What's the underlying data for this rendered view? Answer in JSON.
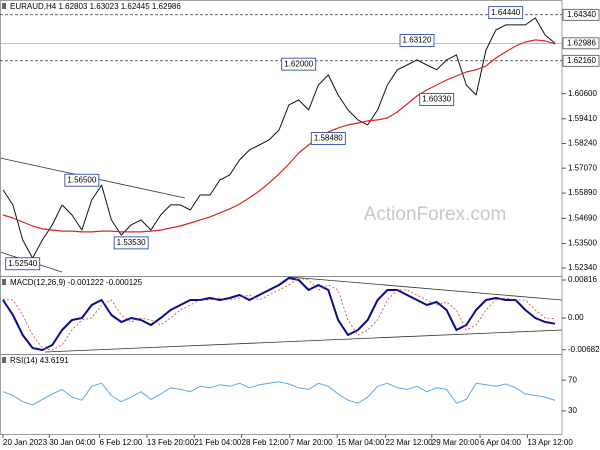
{
  "chart_data": [
    {
      "type": "line",
      "title": "EURAUD,H4  1.62803 1.63023 1.62445 1.62986",
      "watermark": "ActionForex.com",
      "xlim": [
        0,
        56
      ],
      "ylim": [
        1.5196,
        1.6504
      ],
      "yticks": [
        {
          "value": 1.5234,
          "label": "1.52340"
        },
        {
          "value": 1.535,
          "label": "1.53500"
        },
        {
          "value": 1.5469,
          "label": "1.54690"
        },
        {
          "value": 1.5589,
          "label": "1.55890"
        },
        {
          "value": 1.5707,
          "label": "1.57070"
        },
        {
          "value": 1.5824,
          "label": "1.58240"
        },
        {
          "value": 1.5941,
          "label": "1.59410"
        },
        {
          "value": 1.606,
          "label": "1.60600"
        }
      ],
      "xticks": [
        {
          "value": 0,
          "label": "20 Jan 2023"
        },
        {
          "value": 4.7,
          "label": "30 Jan 04:00"
        },
        {
          "value": 9.8,
          "label": "6 Feb 12:00"
        },
        {
          "value": 14.6,
          "label": "13 Feb 20:00"
        },
        {
          "value": 19.4,
          "label": "21 Feb 04:00"
        },
        {
          "value": 24.2,
          "label": "28 Feb 12:00"
        },
        {
          "value": 29.1,
          "label": "7 Mar 20:00"
        },
        {
          "value": 33.9,
          "label": "15 Mar 04:00"
        },
        {
          "value": 38.8,
          "label": "22 Mar 12:00"
        },
        {
          "value": 43.5,
          "label": "29 Mar 20:00"
        },
        {
          "value": 48.4,
          "label": "6 Apr 04:00"
        },
        {
          "value": 53.2,
          "label": "13 Apr 12:00"
        }
      ],
      "price_levels": [
        {
          "value": 1.6434,
          "label": "1.64340",
          "style": "dashed"
        },
        {
          "value": 1.62986,
          "label": "1.62986",
          "style": "solid"
        },
        {
          "value": 1.6216,
          "label": "1.62160",
          "style": "dashed"
        }
      ],
      "annotations": [
        {
          "x": 51,
          "value": 1.6444,
          "label": "1.64440"
        },
        {
          "x": 42,
          "value": 1.6312,
          "label": "1.63120"
        },
        {
          "x": 30,
          "value": 1.62,
          "label": "1.62000"
        },
        {
          "x": 44,
          "value": 1.6033,
          "label": "1.60330"
        },
        {
          "x": 33,
          "value": 1.5848,
          "label": "1.58480"
        },
        {
          "x": 8,
          "value": 1.565,
          "label": "1.56500"
        },
        {
          "x": 13,
          "value": 1.5353,
          "label": "1.53530"
        },
        {
          "x": 2,
          "value": 1.5254,
          "label": "1.52540"
        }
      ],
      "series": [
        {
          "color": "#111111",
          "width": 1,
          "values": [
            1.5604,
            1.5533,
            1.5367,
            1.5281,
            1.5367,
            1.5438,
            1.5533,
            1.5485,
            1.5414,
            1.5556,
            1.5627,
            1.5462,
            1.539,
            1.5438,
            1.5462,
            1.5414,
            1.5485,
            1.5533,
            1.5533,
            1.5509,
            1.558,
            1.558,
            1.5651,
            1.5675,
            1.5746,
            1.5793,
            1.5817,
            1.5841,
            1.5888,
            1.6007,
            1.603,
            1.5983,
            1.6101,
            1.6149,
            1.6054,
            1.5983,
            1.5936,
            1.5912,
            1.5983,
            1.6101,
            1.6173,
            1.6196,
            1.622,
            1.6196,
            1.6173,
            1.622,
            1.6244,
            1.6101,
            1.6054,
            1.6267,
            1.6362,
            1.6386,
            1.6386,
            1.6386,
            1.6419,
            1.6338,
            1.6299
          ]
        },
        {
          "color": "#e02020",
          "width": 1.2,
          "values": [
            1.5485,
            1.5471,
            1.5452,
            1.5433,
            1.5419,
            1.5414,
            1.5409,
            1.5409,
            1.5405,
            1.5405,
            1.5409,
            1.5409,
            1.5405,
            1.5405,
            1.5405,
            1.5409,
            1.5414,
            1.5424,
            1.5433,
            1.5447,
            1.5462,
            1.5476,
            1.5495,
            1.5514,
            1.5537,
            1.5566,
            1.5599,
            1.5637,
            1.568,
            1.5727,
            1.5779,
            1.5817,
            1.585,
            1.5879,
            1.5898,
            1.5912,
            1.5921,
            1.5931,
            1.5936,
            1.5945,
            1.5973,
            1.6011,
            1.6049,
            1.6078,
            1.6101,
            1.6125,
            1.6144,
            1.6163,
            1.6173,
            1.6191,
            1.6229,
            1.6258,
            1.6286,
            1.6305,
            1.6315,
            1.631,
            1.6296
          ]
        }
      ]
    },
    {
      "type": "line",
      "title": "MACD(12,26,9) -0.001222 -0.000125",
      "xlim": [
        0,
        56
      ],
      "ylim": [
        -0.00773,
        0.00902
      ],
      "yticks": [
        0.00816,
        {
          "value": 0,
          "label": "0.00"
        },
        -0.006821
      ],
      "series": [
        {
          "color": "#0a0a8c",
          "width": 2,
          "values": [
            0.00386,
            0.00064,
            -0.00365,
            -0.00644,
            -0.00687,
            -0.0058,
            -0.00258,
            -0.00043,
            0,
            0.00279,
            0.00386,
            0.00064,
            -0.00086,
            0,
            -0.00043,
            -0.0015,
            0,
            0.00172,
            0.00279,
            0.00386,
            0.00386,
            0.00429,
            0.00386,
            0.00429,
            0.00494,
            0.00386,
            0.00494,
            0.00601,
            0.00709,
            0.00859,
            0.00816,
            0.00601,
            0.00709,
            0.00601,
            -0.00043,
            -0.00365,
            -0.00258,
            -0.00043,
            0.00386,
            0.00601,
            0.00601,
            0.00494,
            0.00386,
            0.00279,
            0.00344,
            0.00172,
            -0.00258,
            -0.0015,
            0.00172,
            0.00386,
            0.00429,
            0.00386,
            0.00386,
            0.00172,
            0,
            -0.00086,
            -0.00122
          ]
        },
        {
          "color": "#d04040",
          "width": 0.8,
          "dashed": true,
          "values": [
            0.004,
            0.00386,
            0.00064,
            -0.00365,
            -0.00644,
            -0.00687,
            -0.0058,
            -0.00258,
            -0.00043,
            0,
            0.00279,
            0.00386,
            0.00064,
            -0.00086,
            0,
            -0.00043,
            -0.0015,
            0,
            0.00172,
            0.00279,
            0.00386,
            0.00386,
            0.00429,
            0.00386,
            0.00429,
            0.00494,
            0.00386,
            0.00494,
            0.00601,
            0.00709,
            0.00859,
            0.00816,
            0.00601,
            0.00709,
            0.00601,
            -0.00043,
            -0.00365,
            -0.00258,
            -0.00043,
            0.00386,
            0.00601,
            0.00601,
            0.00494,
            0.00386,
            0.00279,
            0.00344,
            0.00172,
            -0.00258,
            -0.0015,
            0.00172,
            0.00386,
            0.00429,
            0.00386,
            0.00386,
            0.00172,
            0,
            -0.000125
          ]
        }
      ]
    },
    {
      "type": "line",
      "title": "RSI(14) 43.6191",
      "xlim": [
        0,
        56
      ],
      "ylim": [
        0,
        104
      ],
      "yticks": [
        70,
        30
      ],
      "series": [
        {
          "color": "#5aa8f0",
          "width": 1,
          "values": [
            55,
            50,
            42,
            38,
            45,
            52,
            58,
            48,
            44,
            62,
            66,
            50,
            42,
            48,
            55,
            45,
            52,
            60,
            58,
            55,
            62,
            60,
            64,
            62,
            66,
            60,
            64,
            66,
            68,
            65,
            60,
            58,
            66,
            62,
            52,
            44,
            40,
            48,
            62,
            66,
            60,
            58,
            62,
            55,
            60,
            58,
            40,
            45,
            66,
            64,
            62,
            65,
            60,
            52,
            50,
            48,
            43.62
          ]
        }
      ]
    }
  ]
}
